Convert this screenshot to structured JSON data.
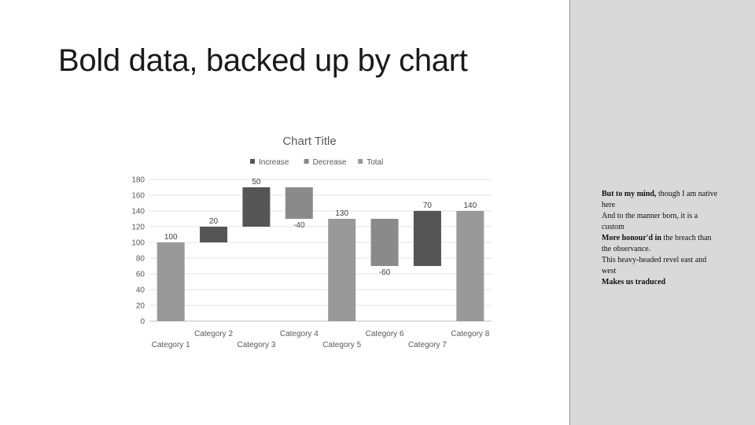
{
  "slide": {
    "title": "Bold data, backed up by  chart"
  },
  "chart_data": {
    "type": "bar",
    "subtype": "waterfall",
    "title": "Chart Title",
    "legend": [
      "Increase",
      "Decrease",
      "Total"
    ],
    "legend_position": "top",
    "categories": [
      "Category 1",
      "Category 2",
      "Category 3",
      "Category 4",
      "Category 5",
      "Category 6",
      "Category 7",
      "Category 8"
    ],
    "points": [
      {
        "category": "Category 1",
        "kind": "Total",
        "start": 0,
        "end": 100,
        "label": "100"
      },
      {
        "category": "Category 2",
        "kind": "Increase",
        "start": 100,
        "end": 120,
        "label": "20"
      },
      {
        "category": "Category 3",
        "kind": "Increase",
        "start": 120,
        "end": 170,
        "label": "50"
      },
      {
        "category": "Category 4",
        "kind": "Decrease",
        "start": 170,
        "end": 130,
        "label": "-40"
      },
      {
        "category": "Category 5",
        "kind": "Total",
        "start": 0,
        "end": 130,
        "label": "130"
      },
      {
        "category": "Category 6",
        "kind": "Decrease",
        "start": 130,
        "end": 70,
        "label": "-60"
      },
      {
        "category": "Category 7",
        "kind": "Increase",
        "start": 70,
        "end": 140,
        "label": "70"
      },
      {
        "category": "Category 8",
        "kind": "Total",
        "start": 0,
        "end": 140,
        "label": "140"
      }
    ],
    "yticks": [
      0,
      20,
      40,
      60,
      80,
      100,
      120,
      140,
      160,
      180
    ],
    "ylim": [
      0,
      180
    ],
    "grid": true,
    "colors": {
      "Increase": "#555555",
      "Decrease": "#8a8a8a",
      "Total": "#999999"
    }
  },
  "notes": {
    "lines": [
      {
        "bold": "But to my mind,",
        "rest": " though I am native here"
      },
      {
        "bold": "",
        "rest": "And to the manner born, it is a custom"
      },
      {
        "bold": "More honour'd in",
        "rest": " the breach than the observance."
      },
      {
        "bold": "",
        "rest": "This heavy-headed revel east and west"
      },
      {
        "bold": "Makes us traduced",
        "rest": ""
      }
    ]
  }
}
